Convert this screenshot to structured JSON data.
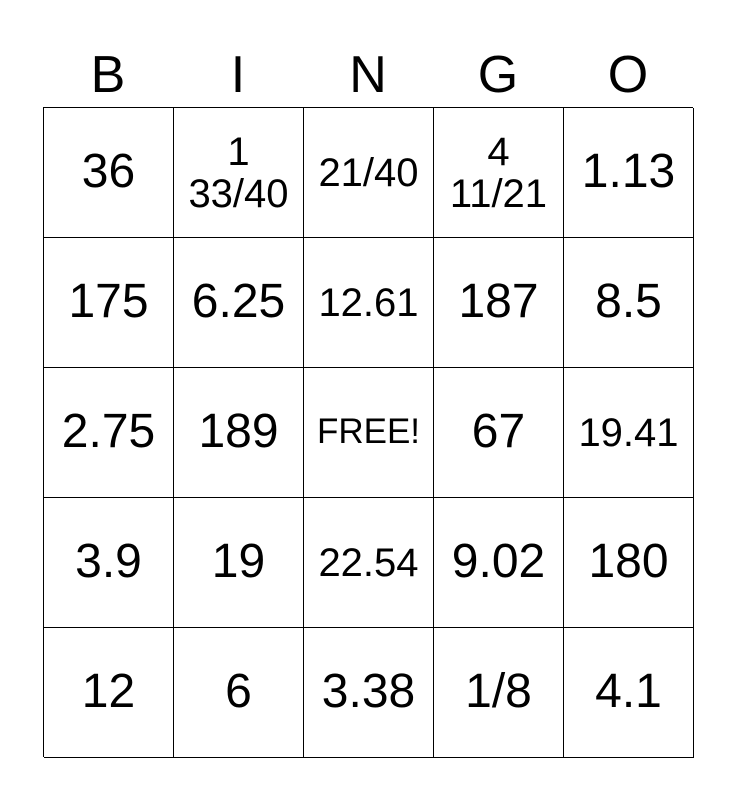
{
  "header": [
    "B",
    "I",
    "N",
    "G",
    "O"
  ],
  "cells": [
    [
      "36",
      "1\n33/40",
      "21/40",
      "4\n11/21",
      "1.13"
    ],
    [
      "175",
      "6.25",
      "12.61",
      "187",
      "8.5"
    ],
    [
      "2.75",
      "189",
      "FREE!",
      "67",
      "19.41"
    ],
    [
      "3.9",
      "19",
      "22.54",
      "9.02",
      "180"
    ],
    [
      "12",
      "6",
      "3.38",
      "1/8",
      "4.1"
    ]
  ]
}
